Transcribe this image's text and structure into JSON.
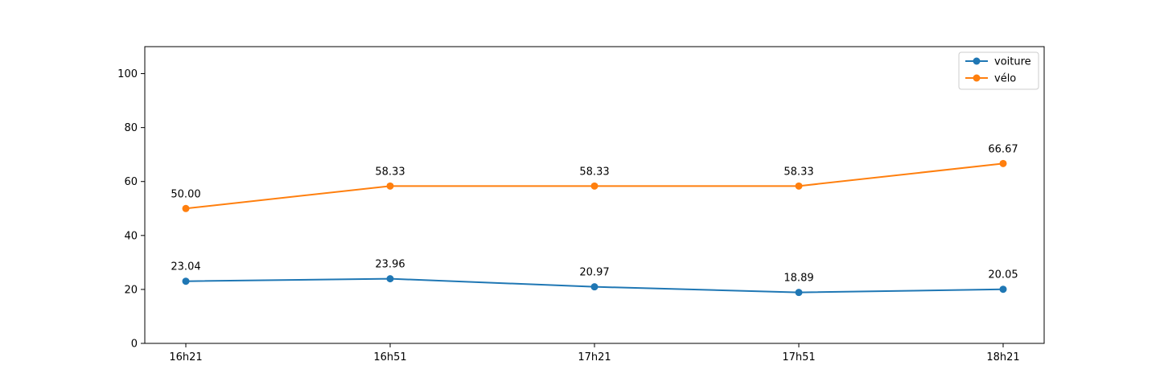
{
  "chart_data": {
    "type": "line",
    "categories": [
      "16h21",
      "16h51",
      "17h21",
      "17h51",
      "18h21"
    ],
    "series": [
      {
        "name": "voiture",
        "color": "#1f77b4",
        "values": [
          23.04,
          23.96,
          20.97,
          18.89,
          20.05
        ],
        "labels": [
          "23.04",
          "23.96",
          "20.97",
          "18.89",
          "20.05"
        ]
      },
      {
        "name": "vélo",
        "color": "#ff7f0e",
        "values": [
          50.0,
          58.33,
          58.33,
          58.33,
          66.67
        ],
        "labels": [
          "50.00",
          "58.33",
          "58.33",
          "58.33",
          "66.67"
        ]
      }
    ],
    "ylim": [
      0,
      110
    ],
    "yticks": [
      0,
      20,
      40,
      60,
      80,
      100
    ],
    "legend_placement": "top-right",
    "grid": false
  }
}
